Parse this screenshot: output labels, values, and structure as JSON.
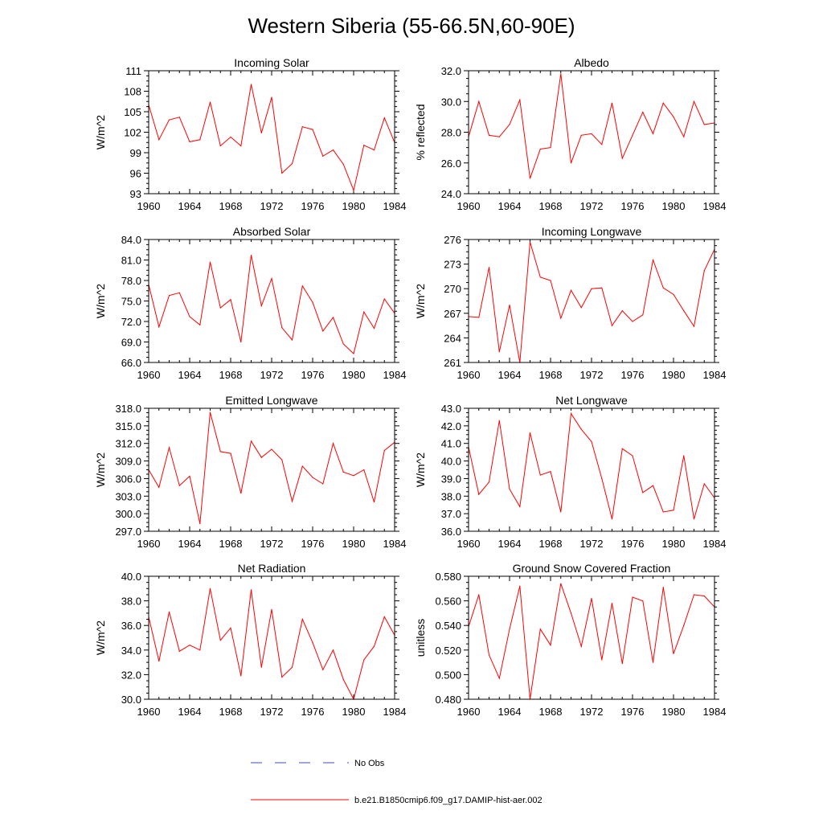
{
  "figure": {
    "title": "Western Siberia (55-66.5N,60-90E)"
  },
  "legend": [
    {
      "label": "No Obs",
      "color": "#3b4cc0",
      "style": "dashed"
    },
    {
      "label": "b.e21.B1850cmip6.f09_g17.DAMIP-hist-aer.002",
      "color": "#ff0000",
      "style": "solid"
    }
  ],
  "chart_data": [
    {
      "type": "line",
      "title": "Incoming Solar",
      "ylabel": "W/m^2",
      "xlim": [
        1960,
        1984
      ],
      "ylim": [
        93,
        111
      ],
      "xticks": [
        1960,
        1964,
        1968,
        1972,
        1976,
        1980,
        1984
      ],
      "yticks": [
        "93",
        "96",
        "99",
        "102",
        "105",
        "108",
        "111"
      ],
      "x": [
        1960,
        1961,
        1962,
        1963,
        1964,
        1965,
        1966,
        1967,
        1968,
        1969,
        1970,
        1971,
        1972,
        1973,
        1974,
        1975,
        1976,
        1977,
        1978,
        1979,
        1980,
        1981,
        1982,
        1983,
        1984
      ],
      "series": [
        {
          "color": "#ff0000",
          "values": [
            106.0,
            100.9,
            103.8,
            104.2,
            100.6,
            100.9,
            106.4,
            100.0,
            101.3,
            100.0,
            109.0,
            101.9,
            107.1,
            96.0,
            97.4,
            102.8,
            102.4,
            98.5,
            99.4,
            97.3,
            93.5,
            100.1,
            99.4,
            104.1,
            100.5
          ]
        }
      ]
    },
    {
      "type": "line",
      "title": "Albedo",
      "ylabel": "% reflected",
      "xlim": [
        1960,
        1984
      ],
      "ylim": [
        24.0,
        32.0
      ],
      "xticks": [
        1960,
        1964,
        1968,
        1972,
        1976,
        1980,
        1984
      ],
      "yticks": [
        "24.0",
        "26.0",
        "28.0",
        "30.0",
        "32.0"
      ],
      "x": [
        1960,
        1961,
        1962,
        1963,
        1964,
        1965,
        1966,
        1967,
        1968,
        1969,
        1970,
        1971,
        1972,
        1973,
        1974,
        1975,
        1976,
        1977,
        1978,
        1979,
        1980,
        1981,
        1982,
        1983,
        1984
      ],
      "series": [
        {
          "color": "#ff0000",
          "values": [
            27.7,
            30.0,
            27.8,
            27.7,
            28.5,
            30.1,
            25.0,
            26.9,
            27.0,
            31.8,
            26.0,
            27.8,
            27.9,
            27.2,
            29.9,
            26.3,
            27.8,
            29.3,
            27.9,
            29.9,
            29.0,
            27.7,
            30.0,
            28.5,
            28.6
          ]
        }
      ]
    },
    {
      "type": "line",
      "title": "Absorbed Solar",
      "ylabel": "W/m^2",
      "xlim": [
        1960,
        1984
      ],
      "ylim": [
        66.0,
        84.0
      ],
      "xticks": [
        1960,
        1964,
        1968,
        1972,
        1976,
        1980,
        1984
      ],
      "yticks": [
        "66.0",
        "69.0",
        "72.0",
        "75.0",
        "78.0",
        "81.0",
        "84.0"
      ],
      "x": [
        1960,
        1961,
        1962,
        1963,
        1964,
        1965,
        1966,
        1967,
        1968,
        1969,
        1970,
        1971,
        1972,
        1973,
        1974,
        1975,
        1976,
        1977,
        1978,
        1979,
        1980,
        1981,
        1982,
        1983,
        1984
      ],
      "series": [
        {
          "color": "#ff0000",
          "values": [
            77.4,
            71.2,
            75.8,
            76.2,
            72.7,
            71.5,
            80.7,
            74.0,
            75.2,
            69.0,
            81.7,
            74.3,
            78.3,
            71.1,
            69.3,
            77.2,
            74.8,
            70.6,
            72.6,
            68.7,
            67.3,
            73.4,
            71.0,
            75.3,
            73.2
          ]
        }
      ]
    },
    {
      "type": "line",
      "title": "Incoming Longwave",
      "ylabel": "W/m^2",
      "xlim": [
        1960,
        1984
      ],
      "ylim": [
        261,
        276
      ],
      "xticks": [
        1960,
        1964,
        1968,
        1972,
        1976,
        1980,
        1984
      ],
      "yticks": [
        "261",
        "264",
        "267",
        "270",
        "273",
        "276"
      ],
      "x": [
        1960,
        1961,
        1962,
        1963,
        1964,
        1965,
        1966,
        1967,
        1968,
        1969,
        1970,
        1971,
        1972,
        1973,
        1974,
        1975,
        1976,
        1977,
        1978,
        1979,
        1980,
        1981,
        1982,
        1983,
        1984
      ],
      "series": [
        {
          "color": "#ff0000",
          "values": [
            266.6,
            266.5,
            272.6,
            262.3,
            268.0,
            261.0,
            275.7,
            271.4,
            271.0,
            266.4,
            269.8,
            267.7,
            270.0,
            270.1,
            265.5,
            267.3,
            266.0,
            266.8,
            273.5,
            270.1,
            269.3,
            267.3,
            265.4,
            272.2,
            274.8
          ]
        }
      ]
    },
    {
      "type": "line",
      "title": "Emitted Longwave",
      "ylabel": "W/m^2",
      "xlim": [
        1960,
        1984
      ],
      "ylim": [
        297.0,
        318.0
      ],
      "xticks": [
        1960,
        1964,
        1968,
        1972,
        1976,
        1980,
        1984
      ],
      "yticks": [
        "297.0",
        "300.0",
        "303.0",
        "306.0",
        "309.0",
        "312.0",
        "315.0",
        "318.0"
      ],
      "x": [
        1960,
        1961,
        1962,
        1963,
        1964,
        1965,
        1966,
        1967,
        1968,
        1969,
        1970,
        1971,
        1972,
        1973,
        1974,
        1975,
        1976,
        1977,
        1978,
        1979,
        1980,
        1981,
        1982,
        1983,
        1984
      ],
      "series": [
        {
          "color": "#ff0000",
          "values": [
            307.5,
            304.5,
            311.3,
            304.8,
            306.4,
            298.3,
            317.3,
            310.6,
            310.3,
            303.5,
            312.4,
            309.6,
            311.0,
            309.2,
            302.1,
            308.1,
            306.2,
            305.1,
            312.0,
            307.1,
            306.5,
            307.5,
            302.0,
            310.8,
            312.2
          ]
        }
      ]
    },
    {
      "type": "line",
      "title": "Net Longwave",
      "ylabel": "W/m^2",
      "xlim": [
        1960,
        1984
      ],
      "ylim": [
        36.0,
        43.0
      ],
      "xticks": [
        1960,
        1964,
        1968,
        1972,
        1976,
        1980,
        1984
      ],
      "yticks": [
        "36.0",
        "37.0",
        "38.0",
        "39.0",
        "40.0",
        "41.0",
        "42.0",
        "43.0"
      ],
      "x": [
        1960,
        1961,
        1962,
        1963,
        1964,
        1965,
        1966,
        1967,
        1968,
        1969,
        1970,
        1971,
        1972,
        1973,
        1974,
        1975,
        1976,
        1977,
        1978,
        1979,
        1980,
        1981,
        1982,
        1983,
        1984
      ],
      "series": [
        {
          "color": "#ff0000",
          "values": [
            40.8,
            38.1,
            38.8,
            42.3,
            38.4,
            37.4,
            41.6,
            39.2,
            39.4,
            37.1,
            42.7,
            41.8,
            41.1,
            39.0,
            36.7,
            40.7,
            40.3,
            38.2,
            38.6,
            37.1,
            37.2,
            40.3,
            36.7,
            38.7,
            37.9
          ]
        }
      ]
    },
    {
      "type": "line",
      "title": "Net Radiation",
      "ylabel": "W/m^2",
      "xlim": [
        1960,
        1984
      ],
      "ylim": [
        30.0,
        40.0
      ],
      "xticks": [
        1960,
        1964,
        1968,
        1972,
        1976,
        1980,
        1984
      ],
      "yticks": [
        "30.0",
        "32.0",
        "34.0",
        "36.0",
        "38.0",
        "40.0"
      ],
      "x": [
        1960,
        1961,
        1962,
        1963,
        1964,
        1965,
        1966,
        1967,
        1968,
        1969,
        1970,
        1971,
        1972,
        1973,
        1974,
        1975,
        1976,
        1977,
        1978,
        1979,
        1980,
        1981,
        1982,
        1983,
        1984
      ],
      "series": [
        {
          "color": "#ff0000",
          "values": [
            36.7,
            33.1,
            37.1,
            33.9,
            34.4,
            34.0,
            39.0,
            34.8,
            35.8,
            31.9,
            38.9,
            32.6,
            37.3,
            31.8,
            32.6,
            36.5,
            34.6,
            32.4,
            34.0,
            31.6,
            30.0,
            33.2,
            34.3,
            36.7,
            35.2
          ]
        }
      ]
    },
    {
      "type": "line",
      "title": "Ground Snow Covered Fraction",
      "ylabel": "unitless",
      "xlim": [
        1960,
        1984
      ],
      "ylim": [
        0.48,
        0.58
      ],
      "xticks": [
        1960,
        1964,
        1968,
        1972,
        1976,
        1980,
        1984
      ],
      "yticks": [
        "0.480",
        "0.500",
        "0.520",
        "0.540",
        "0.560",
        "0.580"
      ],
      "x": [
        1960,
        1961,
        1962,
        1963,
        1964,
        1965,
        1966,
        1967,
        1968,
        1969,
        1970,
        1971,
        1972,
        1973,
        1974,
        1975,
        1976,
        1977,
        1978,
        1979,
        1980,
        1981,
        1982,
        1983,
        1984
      ],
      "series": [
        {
          "color": "#ff0000",
          "values": [
            0.539,
            0.565,
            0.516,
            0.497,
            0.537,
            0.572,
            0.48,
            0.537,
            0.524,
            0.574,
            0.55,
            0.523,
            0.562,
            0.512,
            0.558,
            0.509,
            0.563,
            0.56,
            0.51,
            0.571,
            0.517,
            0.54,
            0.565,
            0.564,
            0.555
          ]
        }
      ]
    }
  ]
}
